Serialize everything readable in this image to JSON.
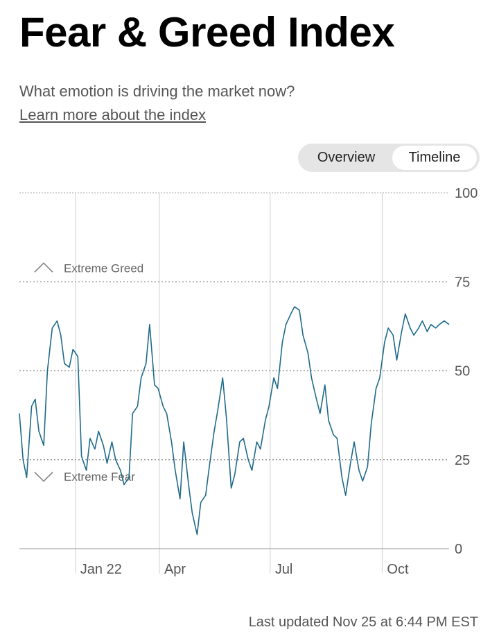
{
  "header": {
    "title": "Fear & Greed Index",
    "subtitle": "What emotion is driving the market now?",
    "learn_more": "Learn more about the index"
  },
  "toggle": {
    "overview_label": "Overview",
    "timeline_label": "Timeline",
    "selected": "Timeline"
  },
  "footer": {
    "last_updated": "Last updated Nov 25 at 6:44 PM EST"
  },
  "colors": {
    "line": "#1e6a8a",
    "grid": "#bbbbbb",
    "band": "#999999",
    "text": "#555555",
    "toggle_bg": "#e5e5e5"
  },
  "icons": {
    "greed_marker": "chevron-up-icon",
    "fear_marker": "chevron-down-icon"
  },
  "chart_data": {
    "type": "line",
    "title": "",
    "xlabel": "",
    "ylabel": "",
    "ylim": [
      0,
      100
    ],
    "y_ticks": [
      0,
      25,
      50,
      75,
      100
    ],
    "x_ticks": [
      "Jan 22",
      "Apr",
      "Jul",
      "Oct"
    ],
    "x_tick_dates": [
      "2022-01-22",
      "2022-04-01",
      "2022-07-01",
      "2022-10-01"
    ],
    "x_range": [
      "2021-12-07",
      "2022-11-25"
    ],
    "bands": [
      {
        "label": "Extreme Greed",
        "value": 75
      },
      {
        "label": "Extreme Fear",
        "value": 25
      }
    ],
    "series": [
      {
        "name": "",
        "x": [
          "2021-12-07",
          "2021-12-10",
          "2021-12-13",
          "2021-12-17",
          "2021-12-20",
          "2021-12-23",
          "2021-12-27",
          "2021-12-30",
          "2022-01-03",
          "2022-01-07",
          "2022-01-10",
          "2022-01-13",
          "2022-01-17",
          "2022-01-20",
          "2022-01-24",
          "2022-01-27",
          "2022-01-31",
          "2022-02-03",
          "2022-02-07",
          "2022-02-10",
          "2022-02-14",
          "2022-02-17",
          "2022-02-21",
          "2022-02-24",
          "2022-02-28",
          "2022-03-03",
          "2022-03-07",
          "2022-03-10",
          "2022-03-14",
          "2022-03-17",
          "2022-03-21",
          "2022-03-24",
          "2022-03-28",
          "2022-03-31",
          "2022-04-04",
          "2022-04-07",
          "2022-04-11",
          "2022-04-14",
          "2022-04-18",
          "2022-04-21",
          "2022-04-25",
          "2022-04-28",
          "2022-05-02",
          "2022-05-05",
          "2022-05-09",
          "2022-05-12",
          "2022-05-16",
          "2022-05-19",
          "2022-05-23",
          "2022-05-26",
          "2022-05-30",
          "2022-06-02",
          "2022-06-06",
          "2022-06-09",
          "2022-06-13",
          "2022-06-16",
          "2022-06-20",
          "2022-06-23",
          "2022-06-27",
          "2022-06-30",
          "2022-07-04",
          "2022-07-07",
          "2022-07-11",
          "2022-07-14",
          "2022-07-18",
          "2022-07-21",
          "2022-07-25",
          "2022-07-28",
          "2022-08-01",
          "2022-08-04",
          "2022-08-08",
          "2022-08-11",
          "2022-08-15",
          "2022-08-18",
          "2022-08-22",
          "2022-08-25",
          "2022-08-29",
          "2022-09-01",
          "2022-09-05",
          "2022-09-08",
          "2022-09-12",
          "2022-09-15",
          "2022-09-19",
          "2022-09-22",
          "2022-09-26",
          "2022-09-29",
          "2022-10-03",
          "2022-10-06",
          "2022-10-10",
          "2022-10-13",
          "2022-10-17",
          "2022-10-20",
          "2022-10-24",
          "2022-10-27",
          "2022-10-31",
          "2022-11-03",
          "2022-11-07",
          "2022-11-10",
          "2022-11-14",
          "2022-11-17",
          "2022-11-21",
          "2022-11-25"
        ],
        "values": [
          38,
          25,
          20,
          40,
          42,
          33,
          29,
          50,
          62,
          64,
          60,
          52,
          51,
          56,
          54,
          26,
          22,
          31,
          28,
          33,
          29,
          24,
          30,
          25,
          22,
          18,
          20,
          38,
          40,
          48,
          52,
          63,
          46,
          45,
          40,
          38,
          30,
          22,
          14,
          30,
          18,
          10,
          4,
          13,
          15,
          23,
          33,
          39,
          48,
          37,
          17,
          21,
          30,
          31,
          25,
          22,
          30,
          28,
          36,
          40,
          48,
          45,
          58,
          63,
          66,
          68,
          67,
          60,
          55,
          48,
          42,
          38,
          46,
          36,
          32,
          31,
          20,
          15,
          24,
          30,
          22,
          19,
          23,
          35,
          45,
          48,
          58,
          62,
          60,
          53,
          61,
          66,
          62,
          60,
          62,
          64,
          61,
          63,
          62,
          63,
          64,
          63
        ]
      }
    ]
  }
}
